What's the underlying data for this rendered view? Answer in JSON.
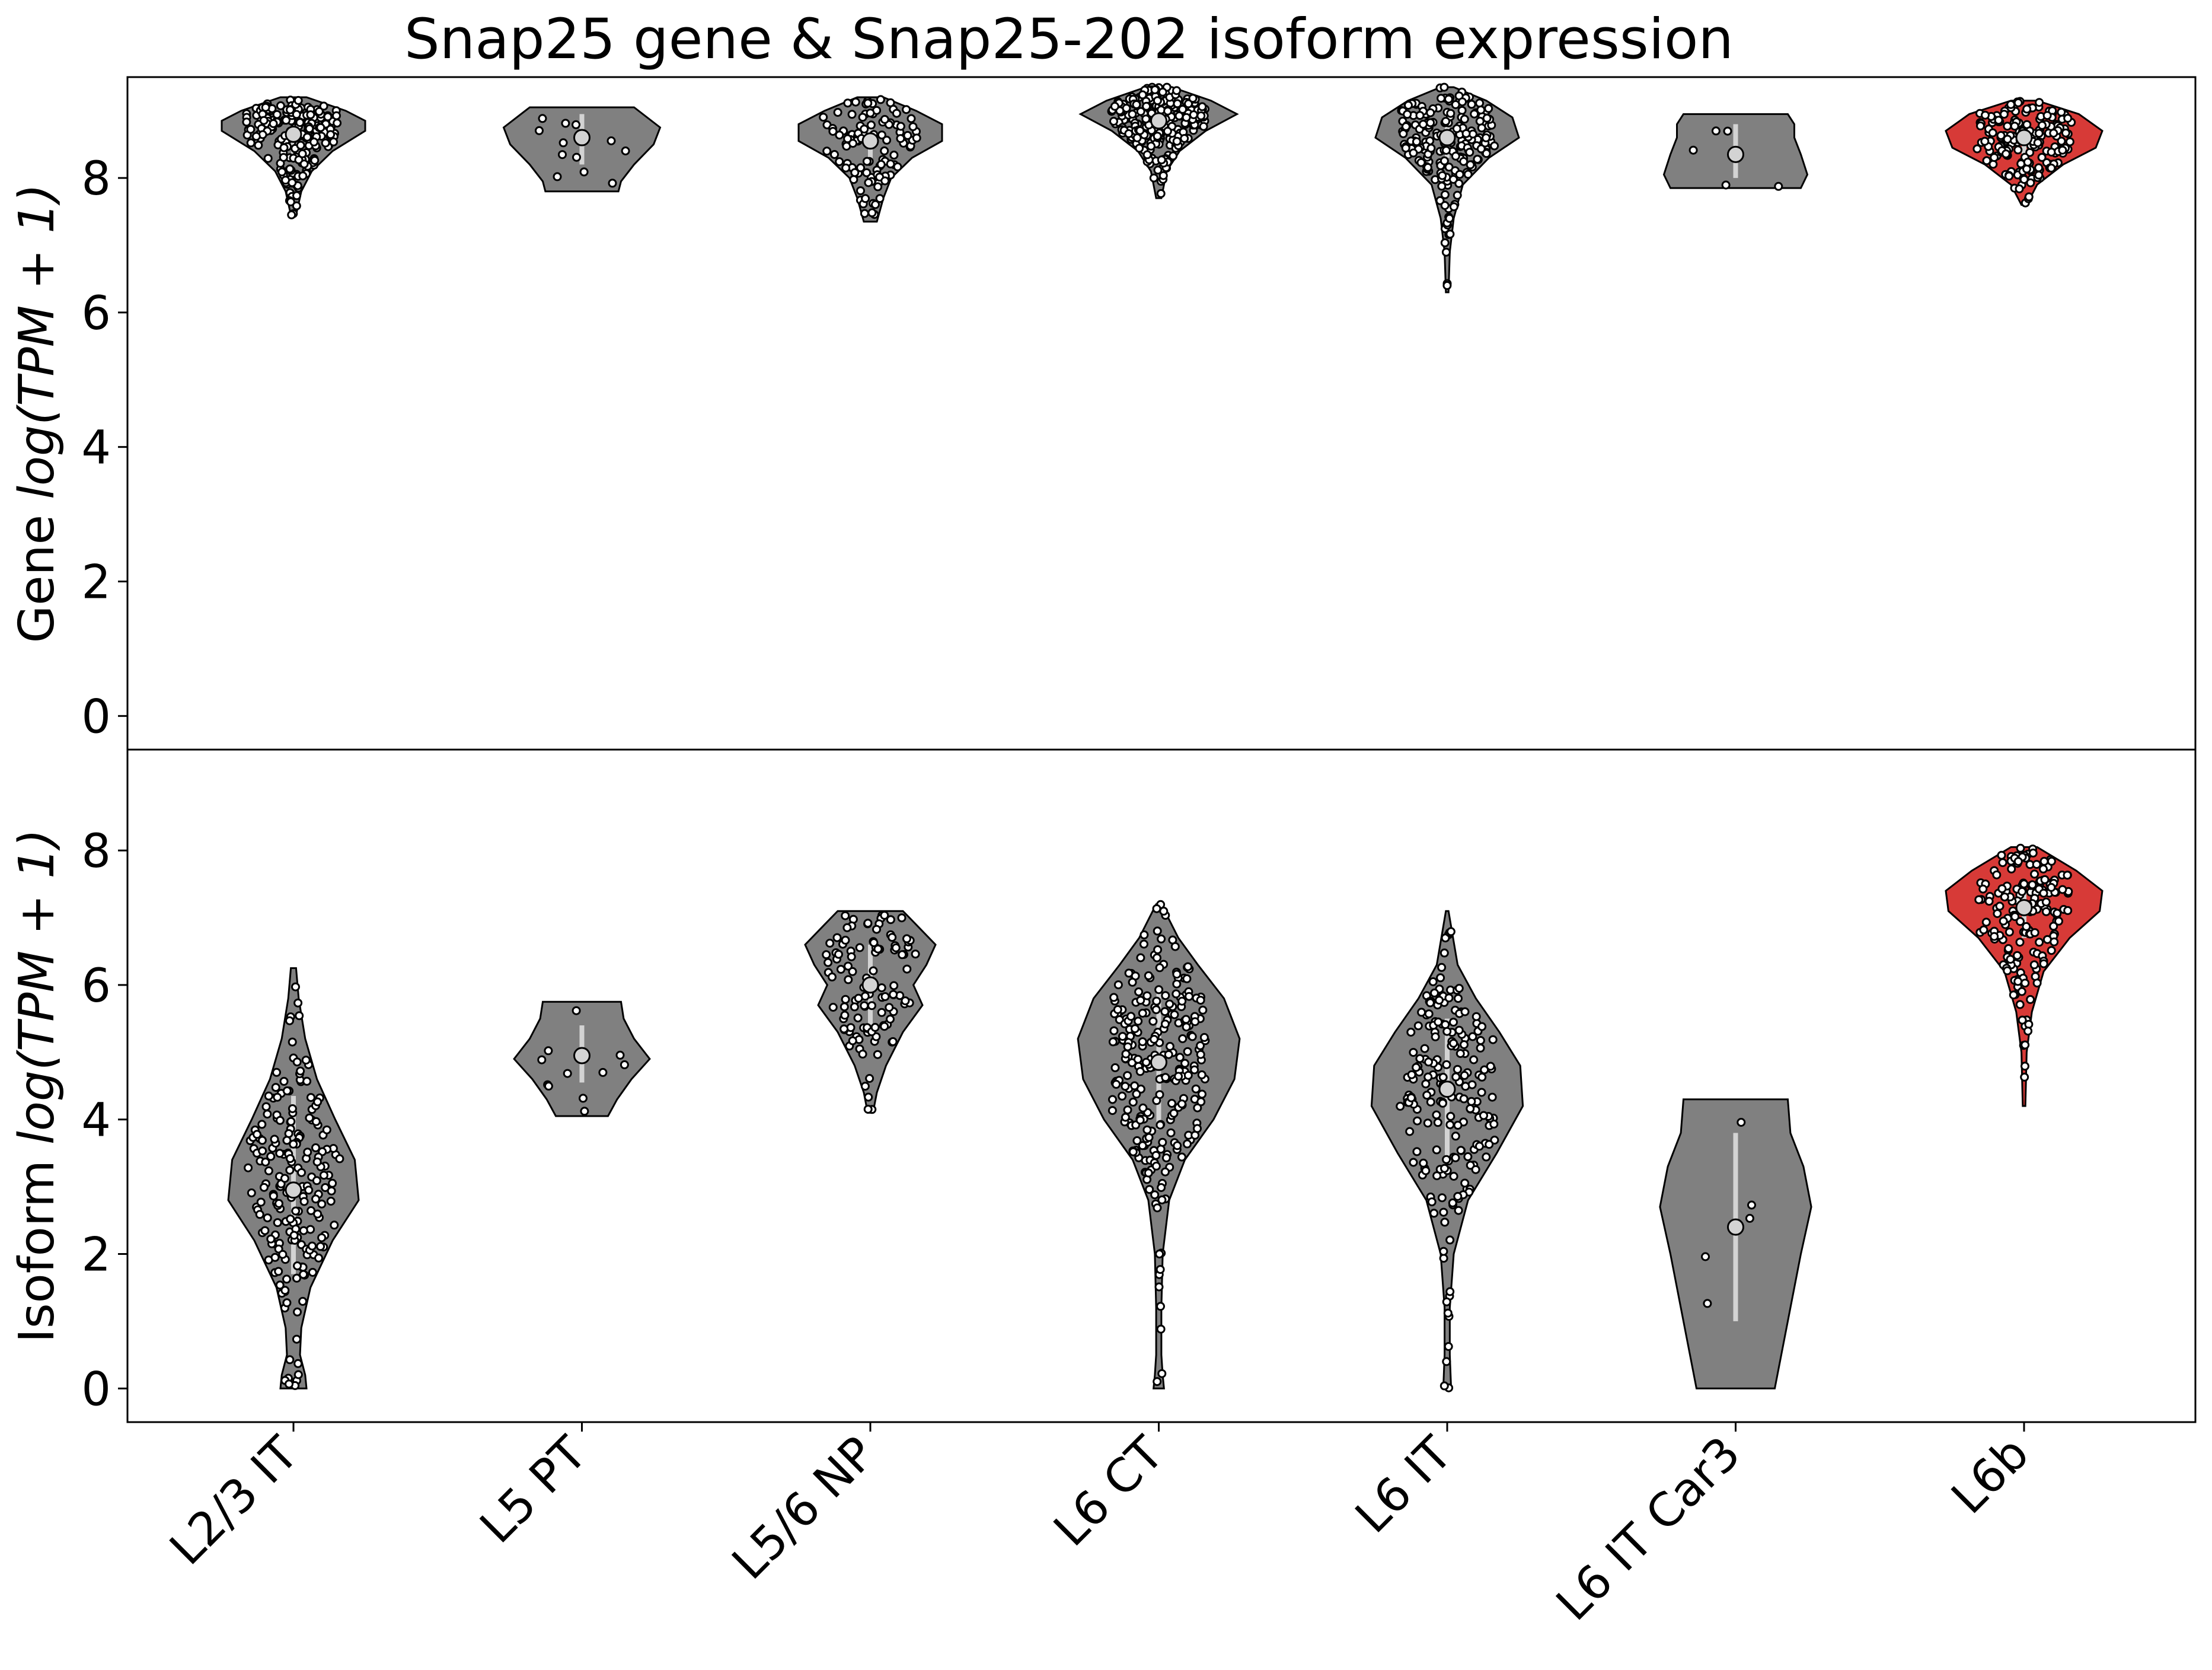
{
  "chart_data": {
    "type": "violin",
    "title": "Snap25 gene & Snap25-202 isoform expression",
    "categories": [
      "L2/3 IT",
      "L5 PT",
      "L5/6 NP",
      "L6 CT",
      "L6 IT",
      "L6 IT Car3",
      "L6b"
    ],
    "highlight_category": "L6b",
    "colors": {
      "default_violin": "#808080",
      "highlight_violin": "#d73a37",
      "points": "#ffffff",
      "outline": "#000000",
      "iqr_bar": "#d3d3d3"
    },
    "panels": [
      {
        "name": "gene",
        "ylabel_prefix": "Gene ",
        "ylabel_expr": "log(TPM + 1)",
        "ylim": [
          -0.5,
          9.5
        ],
        "yticks": [
          0,
          2,
          4,
          6,
          8
        ],
        "violins": [
          {
            "category": "L2/3 IT",
            "min": 7.45,
            "max": 9.2,
            "median": 8.65,
            "q1": 8.35,
            "q3": 8.9,
            "n": 200,
            "profile": [
              [
                7.45,
                0.02
              ],
              [
                7.8,
                0.06
              ],
              [
                8.1,
                0.14
              ],
              [
                8.4,
                0.3
              ],
              [
                8.7,
                0.55
              ],
              [
                8.85,
                0.55
              ],
              [
                9.0,
                0.4
              ],
              [
                9.2,
                0.1
              ]
            ]
          },
          {
            "category": "L5 PT",
            "min": 7.8,
            "max": 9.05,
            "median": 8.6,
            "q1": 8.2,
            "q3": 8.95,
            "n": 12,
            "profile": [
              [
                7.8,
                0.28
              ],
              [
                7.95,
                0.3
              ],
              [
                8.2,
                0.4
              ],
              [
                8.5,
                0.55
              ],
              [
                8.75,
                0.6
              ],
              [
                9.05,
                0.4
              ]
            ]
          },
          {
            "category": "L5/6 NP",
            "min": 7.35,
            "max": 9.2,
            "median": 8.55,
            "q1": 8.2,
            "q3": 8.85,
            "n": 110,
            "profile": [
              [
                7.35,
                0.05
              ],
              [
                7.7,
                0.1
              ],
              [
                8.0,
                0.16
              ],
              [
                8.3,
                0.32
              ],
              [
                8.55,
                0.55
              ],
              [
                8.8,
                0.55
              ],
              [
                9.0,
                0.35
              ],
              [
                9.2,
                0.1
              ]
            ]
          },
          {
            "category": "L6 CT",
            "min": 7.7,
            "max": 9.35,
            "median": 8.85,
            "q1": 8.6,
            "q3": 9.1,
            "n": 260,
            "profile": [
              [
                7.7,
                0.02
              ],
              [
                8.1,
                0.06
              ],
              [
                8.4,
                0.16
              ],
              [
                8.7,
                0.36
              ],
              [
                8.95,
                0.6
              ],
              [
                9.15,
                0.4
              ],
              [
                9.35,
                0.1
              ]
            ]
          },
          {
            "category": "L6 IT",
            "min": 6.3,
            "max": 9.35,
            "median": 8.6,
            "q1": 8.3,
            "q3": 8.95,
            "n": 200,
            "profile": [
              [
                6.3,
                0.01
              ],
              [
                6.9,
                0.02
              ],
              [
                7.4,
                0.05
              ],
              [
                7.9,
                0.12
              ],
              [
                8.3,
                0.32
              ],
              [
                8.6,
                0.55
              ],
              [
                8.9,
                0.5
              ],
              [
                9.15,
                0.3
              ],
              [
                9.35,
                0.05
              ]
            ]
          },
          {
            "category": "L6 IT Car3",
            "min": 7.85,
            "max": 8.95,
            "median": 8.35,
            "q1": 8.0,
            "q3": 8.8,
            "n": 5,
            "profile": [
              [
                7.85,
                0.5
              ],
              [
                8.05,
                0.55
              ],
              [
                8.35,
                0.5
              ],
              [
                8.6,
                0.45
              ],
              [
                8.8,
                0.45
              ],
              [
                8.95,
                0.4
              ]
            ]
          },
          {
            "category": "L6b",
            "min": 7.6,
            "max": 9.15,
            "median": 8.6,
            "q1": 8.35,
            "q3": 8.85,
            "n": 180,
            "profile": [
              [
                7.6,
                0.02
              ],
              [
                7.9,
                0.1
              ],
              [
                8.2,
                0.3
              ],
              [
                8.45,
                0.55
              ],
              [
                8.7,
                0.6
              ],
              [
                8.95,
                0.42
              ],
              [
                9.15,
                0.1
              ]
            ]
          }
        ]
      },
      {
        "name": "isoform",
        "ylabel_prefix": "Isoform ",
        "ylabel_expr": "log(TPM + 1)",
        "ylim": [
          -0.5,
          9.5
        ],
        "yticks": [
          0,
          2,
          4,
          6,
          8
        ],
        "violins": [
          {
            "category": "L2/3 IT",
            "min": 0.0,
            "max": 6.25,
            "median": 2.95,
            "q1": 1.7,
            "q3": 4.35,
            "n": 200,
            "profile": [
              [
                0.0,
                0.1
              ],
              [
                0.2,
                0.09
              ],
              [
                0.5,
                0.05
              ],
              [
                0.9,
                0.06
              ],
              [
                1.5,
                0.13
              ],
              [
                2.2,
                0.3
              ],
              [
                2.8,
                0.5
              ],
              [
                3.4,
                0.47
              ],
              [
                4.0,
                0.32
              ],
              [
                4.6,
                0.18
              ],
              [
                5.2,
                0.09
              ],
              [
                5.8,
                0.04
              ],
              [
                6.25,
                0.02
              ]
            ]
          },
          {
            "category": "L5 PT",
            "min": 4.05,
            "max": 5.75,
            "median": 4.95,
            "q1": 4.55,
            "q3": 5.4,
            "n": 12,
            "profile": [
              [
                4.05,
                0.2
              ],
              [
                4.3,
                0.27
              ],
              [
                4.6,
                0.38
              ],
              [
                4.9,
                0.52
              ],
              [
                5.2,
                0.4
              ],
              [
                5.5,
                0.32
              ],
              [
                5.75,
                0.3
              ]
            ]
          },
          {
            "category": "L5/6 NP",
            "min": 4.1,
            "max": 7.1,
            "median": 6.0,
            "q1": 5.4,
            "q3": 6.6,
            "n": 110,
            "profile": [
              [
                4.1,
                0.02
              ],
              [
                4.4,
                0.05
              ],
              [
                4.8,
                0.12
              ],
              [
                5.3,
                0.25
              ],
              [
                5.7,
                0.4
              ],
              [
                6.0,
                0.33
              ],
              [
                6.3,
                0.43
              ],
              [
                6.6,
                0.5
              ],
              [
                6.9,
                0.35
              ],
              [
                7.1,
                0.25
              ]
            ]
          },
          {
            "category": "L6 CT",
            "min": 0.0,
            "max": 7.2,
            "median": 4.85,
            "q1": 3.85,
            "q3": 5.9,
            "n": 260,
            "profile": [
              [
                0.0,
                0.04
              ],
              [
                0.2,
                0.03
              ],
              [
                0.5,
                0.02
              ],
              [
                1.2,
                0.02
              ],
              [
                2.0,
                0.03
              ],
              [
                2.8,
                0.08
              ],
              [
                3.4,
                0.2
              ],
              [
                4.0,
                0.42
              ],
              [
                4.6,
                0.58
              ],
              [
                5.2,
                0.62
              ],
              [
                5.8,
                0.5
              ],
              [
                6.3,
                0.3
              ],
              [
                6.7,
                0.15
              ],
              [
                7.2,
                0.02
              ]
            ]
          },
          {
            "category": "L6 IT",
            "min": 0.0,
            "max": 7.1,
            "median": 4.45,
            "q1": 3.4,
            "q3": 5.5,
            "n": 200,
            "profile": [
              [
                0.0,
                0.03
              ],
              [
                0.5,
                0.02
              ],
              [
                1.2,
                0.02
              ],
              [
                2.0,
                0.05
              ],
              [
                2.8,
                0.16
              ],
              [
                3.5,
                0.38
              ],
              [
                4.2,
                0.58
              ],
              [
                4.8,
                0.56
              ],
              [
                5.3,
                0.4
              ],
              [
                5.8,
                0.22
              ],
              [
                6.3,
                0.08
              ],
              [
                7.1,
                0.01
              ]
            ]
          },
          {
            "category": "L6 IT Car3",
            "min": 0.0,
            "max": 4.3,
            "median": 2.4,
            "q1": 1.0,
            "q3": 3.8,
            "n": 5,
            "profile": [
              [
                0.0,
                0.3
              ],
              [
                0.5,
                0.35
              ],
              [
                1.2,
                0.42
              ],
              [
                2.0,
                0.5
              ],
              [
                2.7,
                0.58
              ],
              [
                3.3,
                0.52
              ],
              [
                3.8,
                0.42
              ],
              [
                4.3,
                0.4
              ]
            ]
          },
          {
            "category": "L6b",
            "min": 4.2,
            "max": 8.05,
            "median": 7.15,
            "q1": 6.7,
            "q3": 7.55,
            "n": 180,
            "profile": [
              [
                4.2,
                0.01
              ],
              [
                5.0,
                0.02
              ],
              [
                5.6,
                0.06
              ],
              [
                6.2,
                0.15
              ],
              [
                6.7,
                0.35
              ],
              [
                7.1,
                0.58
              ],
              [
                7.4,
                0.6
              ],
              [
                7.7,
                0.4
              ],
              [
                8.05,
                0.1
              ]
            ]
          }
        ]
      }
    ]
  }
}
